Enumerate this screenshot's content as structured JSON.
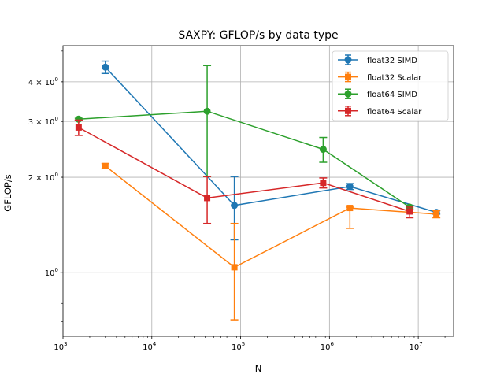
{
  "chart_data": {
    "type": "line",
    "title": "SAXPY: GFLOP/s by data type",
    "xlabel": "N",
    "ylabel": "GFLOP/s",
    "xscale": "log",
    "yscale": "log",
    "xlim": [
      1000,
      25000000
    ],
    "ylim": [
      0.63,
      5.2
    ],
    "grid": true,
    "legend_position": "top-right",
    "x_ticks": [
      {
        "value": 1000,
        "base": "10",
        "exp": "3"
      },
      {
        "value": 10000,
        "base": "10",
        "exp": "4"
      },
      {
        "value": 100000,
        "base": "10",
        "exp": "5"
      },
      {
        "value": 1000000,
        "base": "10",
        "exp": "6"
      },
      {
        "value": 10000000,
        "base": "10",
        "exp": "7"
      }
    ],
    "y_ticks": [
      {
        "value": 1,
        "mantissa": "10",
        "exp": "0",
        "major": true
      },
      {
        "value": 2,
        "mantissa": "2 × 10",
        "exp": "0",
        "major": false
      },
      {
        "value": 3,
        "mantissa": "3 × 10",
        "exp": "0",
        "major": false
      },
      {
        "value": 4,
        "mantissa": "4 × 10",
        "exp": "0",
        "major": false
      }
    ],
    "series": [
      {
        "name": "float32 SIMD",
        "color": "#1f77b4",
        "marker": "circle",
        "x": [
          3000,
          85000,
          1700000,
          16000000
        ],
        "y": [
          4.45,
          1.63,
          1.87,
          1.55
        ],
        "y_err": [
          [
            4.25,
            4.65
          ],
          [
            1.27,
            2.01
          ],
          [
            1.83,
            1.91
          ],
          [
            1.53,
            1.57
          ]
        ]
      },
      {
        "name": "float32 Scalar",
        "color": "#ff7f0e",
        "marker": "square",
        "x": [
          3000,
          85000,
          1700000,
          16000000
        ],
        "y": [
          2.17,
          1.04,
          1.6,
          1.53
        ],
        "y_err": [
          [
            2.13,
            2.21
          ],
          [
            0.71,
            1.43
          ],
          [
            1.38,
            1.61
          ],
          [
            1.49,
            1.57
          ]
        ]
      },
      {
        "name": "float64 SIMD",
        "color": "#2ca02c",
        "marker": "circle",
        "x": [
          1500,
          42000,
          850000,
          8000000
        ],
        "y": [
          3.05,
          3.23,
          2.45,
          1.61
        ],
        "y_err": [
          [
            3.03,
            3.07
          ],
          [
            2.01,
            4.5
          ],
          [
            2.23,
            2.67
          ],
          [
            1.59,
            1.63
          ]
        ]
      },
      {
        "name": "float64 Scalar",
        "color": "#d62728",
        "marker": "square",
        "x": [
          1500,
          42000,
          850000,
          8000000
        ],
        "y": [
          2.87,
          1.72,
          1.92,
          1.56
        ],
        "y_err": [
          [
            2.71,
            3.03
          ],
          [
            1.43,
            2.01
          ],
          [
            1.85,
            1.99
          ],
          [
            1.49,
            1.61
          ]
        ]
      }
    ]
  }
}
